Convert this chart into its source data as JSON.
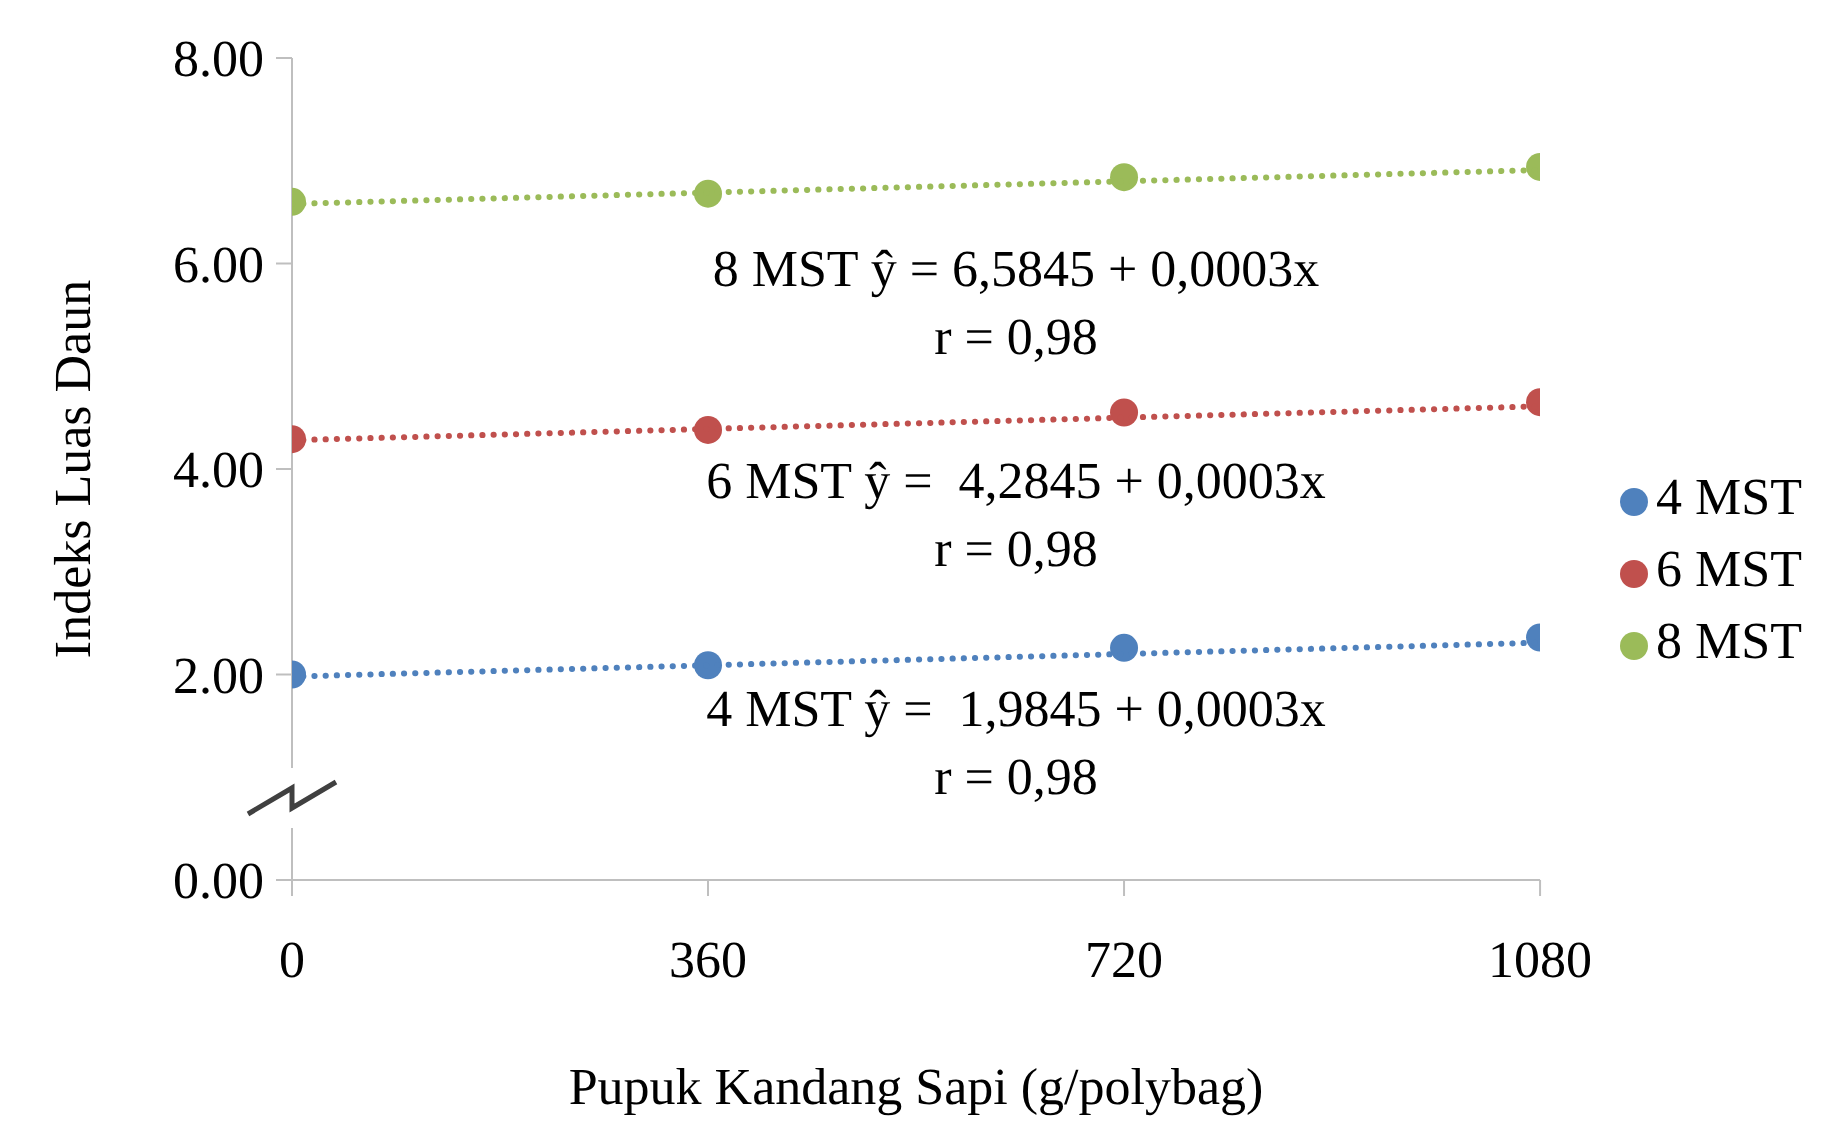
{
  "chart_data": {
    "type": "scatter",
    "xlabel": "Pupuk Kandang Sapi (g/polybag)",
    "ylabel": "Indeks Luas Daun",
    "x": [
      0,
      360,
      720,
      1080
    ],
    "series": [
      {
        "name": "4 MST",
        "color": "#4f81bd",
        "values": [
          2.0,
          2.09,
          2.26,
          2.36
        ]
      },
      {
        "name": "6 MST",
        "color": "#c0504d",
        "values": [
          4.29,
          4.38,
          4.55,
          4.65
        ]
      },
      {
        "name": "8 MST",
        "color": "#9bbb59",
        "values": [
          6.6,
          6.68,
          6.84,
          6.94
        ]
      },
      {
        "type": "line",
        "color": "#4f81bd",
        "values": [
          1.98,
          2.09,
          2.2,
          2.31
        ],
        "line_style": "dotted",
        "marker": "none"
      },
      {
        "type": "line",
        "color": "#c0504d",
        "values": [
          4.28,
          4.39,
          4.5,
          4.61
        ],
        "line_style": "dotted",
        "marker": "none"
      },
      {
        "type": "line",
        "color": "#9bbb59",
        "values": [
          6.58,
          6.69,
          6.8,
          6.91
        ],
        "line_style": "dotted",
        "marker": "none"
      }
    ],
    "xlim": [
      0,
      1080
    ],
    "xticks": [
      0,
      360,
      720,
      1080
    ],
    "ylim": [
      0,
      8
    ],
    "yticks": [
      {
        "value": 0,
        "label": "0.00"
      },
      {
        "value": 2,
        "label": "2.00"
      },
      {
        "value": 4,
        "label": "4.00"
      },
      {
        "value": 6,
        "label": "6.00"
      },
      {
        "value": 8,
        "label": "8.00"
      }
    ],
    "annotations": [
      "8 MST ŷ = 6,5845 + 0,0003x",
      "r = 0,98",
      "6 MST ŷ =  4,2845 + 0,0003x",
      "r = 0,98",
      "4 MST ŷ =  1,9845 + 0,0003x",
      "r = 0,98"
    ],
    "grid": false,
    "legend": "right",
    "marker": "circle"
  }
}
